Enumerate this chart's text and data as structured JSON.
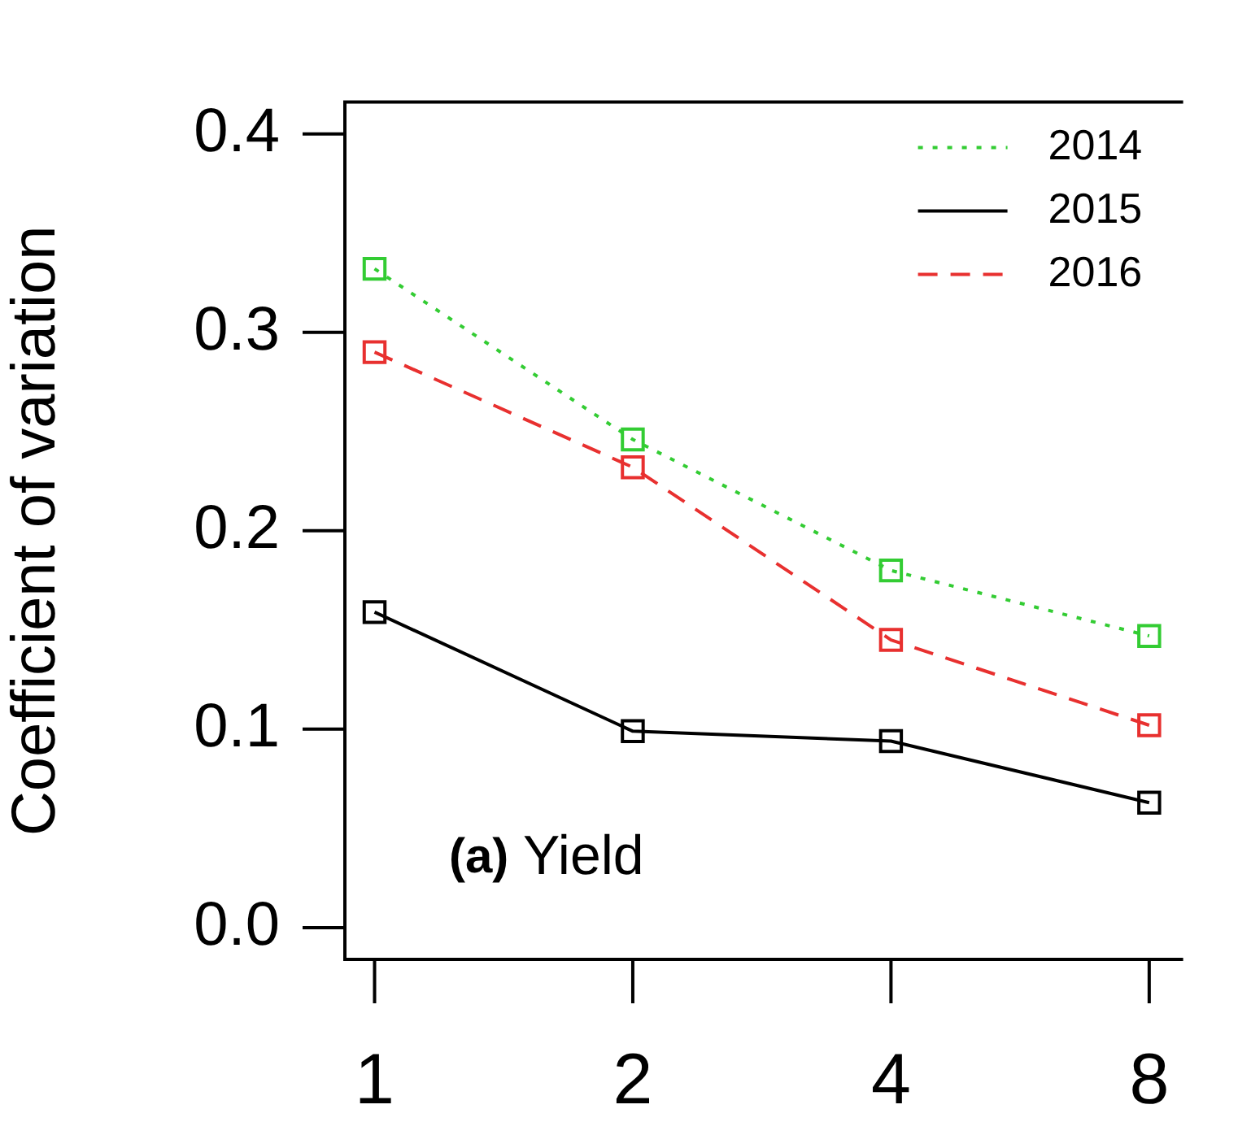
{
  "chart_data": {
    "type": "line",
    "ylabel": "Coefficient of variation",
    "categories": [
      "1",
      "2",
      "4",
      "8"
    ],
    "series": [
      {
        "name": "2014",
        "color": "#33cc33",
        "line_style": "dotted",
        "values": [
          0.332,
          0.246,
          0.18,
          0.147
        ]
      },
      {
        "name": "2015",
        "color": "#000000",
        "line_style": "solid",
        "values": [
          0.159,
          0.099,
          0.094,
          0.063
        ]
      },
      {
        "name": "2016",
        "color": "#e8302f",
        "line_style": "dashed",
        "values": [
          0.29,
          0.232,
          0.145,
          0.102
        ]
      }
    ],
    "ylim": [
      -0.016,
      0.416
    ],
    "yticks": [
      {
        "value": 0,
        "label": "0.0"
      },
      {
        "value": 0.1,
        "label": "0.1"
      },
      {
        "value": 0.2,
        "label": "0.2"
      },
      {
        "value": 0.3,
        "label": "0.3"
      },
      {
        "value": 0.4,
        "label": "0.4"
      }
    ],
    "marker": "square",
    "legend": "top right",
    "grid": false,
    "annotations": [
      "(a) Yield"
    ]
  }
}
